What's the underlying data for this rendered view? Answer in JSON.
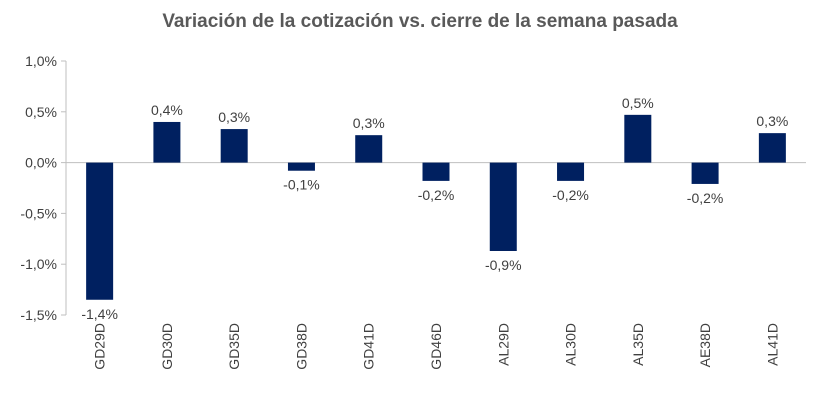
{
  "chart_data": {
    "type": "bar",
    "title": "Variación de la cotización vs. cierre de la semana pasada",
    "xlabel": "",
    "ylabel": "",
    "categories": [
      "GD29D",
      "GD30D",
      "GD35D",
      "GD38D",
      "GD41D",
      "GD46D",
      "AL29D",
      "AL30D",
      "AL35D",
      "AE38D",
      "AL41D"
    ],
    "values": [
      -1.35,
      0.4,
      0.33,
      -0.08,
      0.27,
      -0.18,
      -0.87,
      -0.18,
      0.47,
      -0.21,
      0.29
    ],
    "data_labels": [
      "-1,4%",
      "0,4%",
      "0,3%",
      "-0,1%",
      "0,3%",
      "-0,2%",
      "-0,9%",
      "-0,2%",
      "0,5%",
      "-0,2%",
      "0,3%"
    ],
    "y_ticks": [
      "1,0%",
      "0,5%",
      "0,0%",
      "-0,5%",
      "-1,0%",
      "-1,5%"
    ],
    "y_tick_values": [
      1.0,
      0.5,
      0.0,
      -0.5,
      -1.0,
      -1.5
    ],
    "ylim": [
      -1.5,
      1.0
    ],
    "grid": false,
    "legend": "none",
    "bar_color": "#002060"
  }
}
